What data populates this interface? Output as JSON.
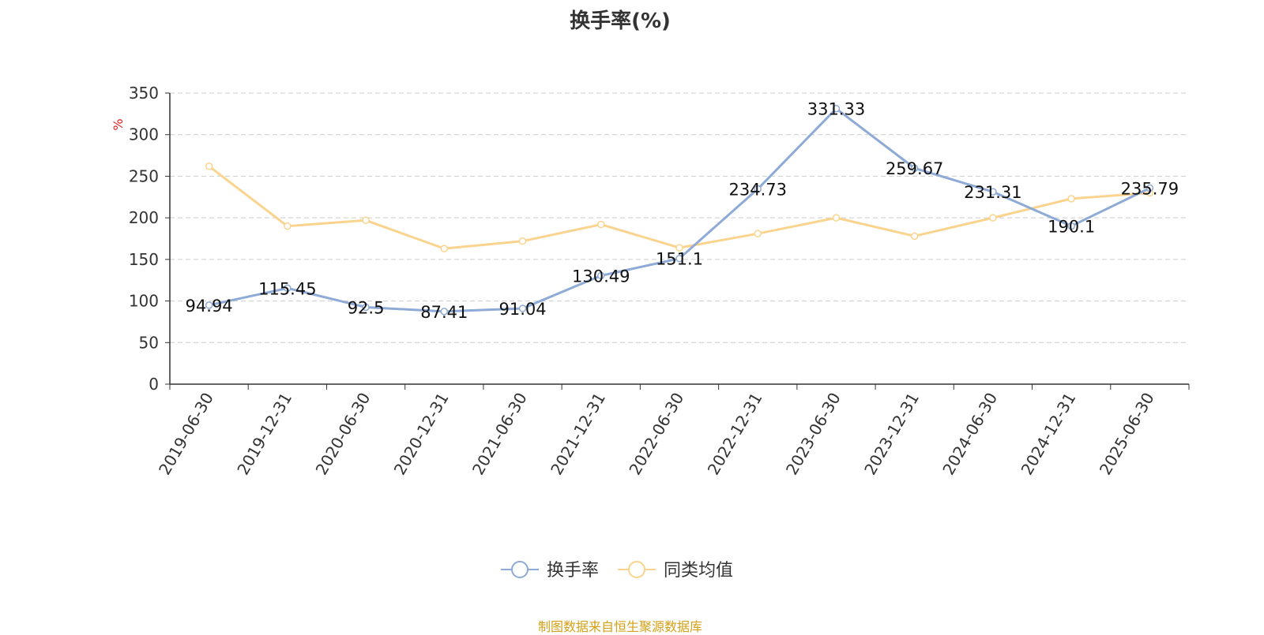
{
  "chart_data": {
    "type": "line",
    "title": "换手率(%)",
    "ylabel": "%",
    "xlabel": "",
    "ylim": [
      0,
      350
    ],
    "yticks": [
      0,
      50,
      100,
      150,
      200,
      250,
      300,
      350
    ],
    "grid": true,
    "legend_position": "bottom",
    "categories": [
      "2019-06-30",
      "2019-12-31",
      "2020-06-30",
      "2020-12-31",
      "2021-06-30",
      "2021-12-31",
      "2022-06-30",
      "2022-12-31",
      "2023-06-30",
      "2023-12-31",
      "2024-06-30",
      "2024-12-31",
      "2025-06-30"
    ],
    "series": [
      {
        "name": "换手率",
        "color": "#8eaad6",
        "values": [
          94.94,
          115.45,
          92.5,
          87.41,
          91.04,
          130.49,
          151.1,
          234.73,
          331.33,
          259.67,
          231.31,
          190.1,
          235.79
        ],
        "labels": [
          "94.94",
          "115.45",
          "92.5",
          "87.41",
          "91.04",
          "130.49",
          "151.1",
          "234.73",
          "331.33",
          "259.67",
          "231.31",
          "190.1",
          "235.79"
        ]
      },
      {
        "name": "同类均值",
        "color": "#fad48e",
        "values": [
          262,
          190,
          197,
          163,
          172,
          192,
          164,
          181,
          200,
          178,
          200,
          223,
          230
        ]
      }
    ]
  },
  "footer": {
    "source_text": "制图数据来自恒生聚源数据库",
    "color": "#d4a017"
  }
}
